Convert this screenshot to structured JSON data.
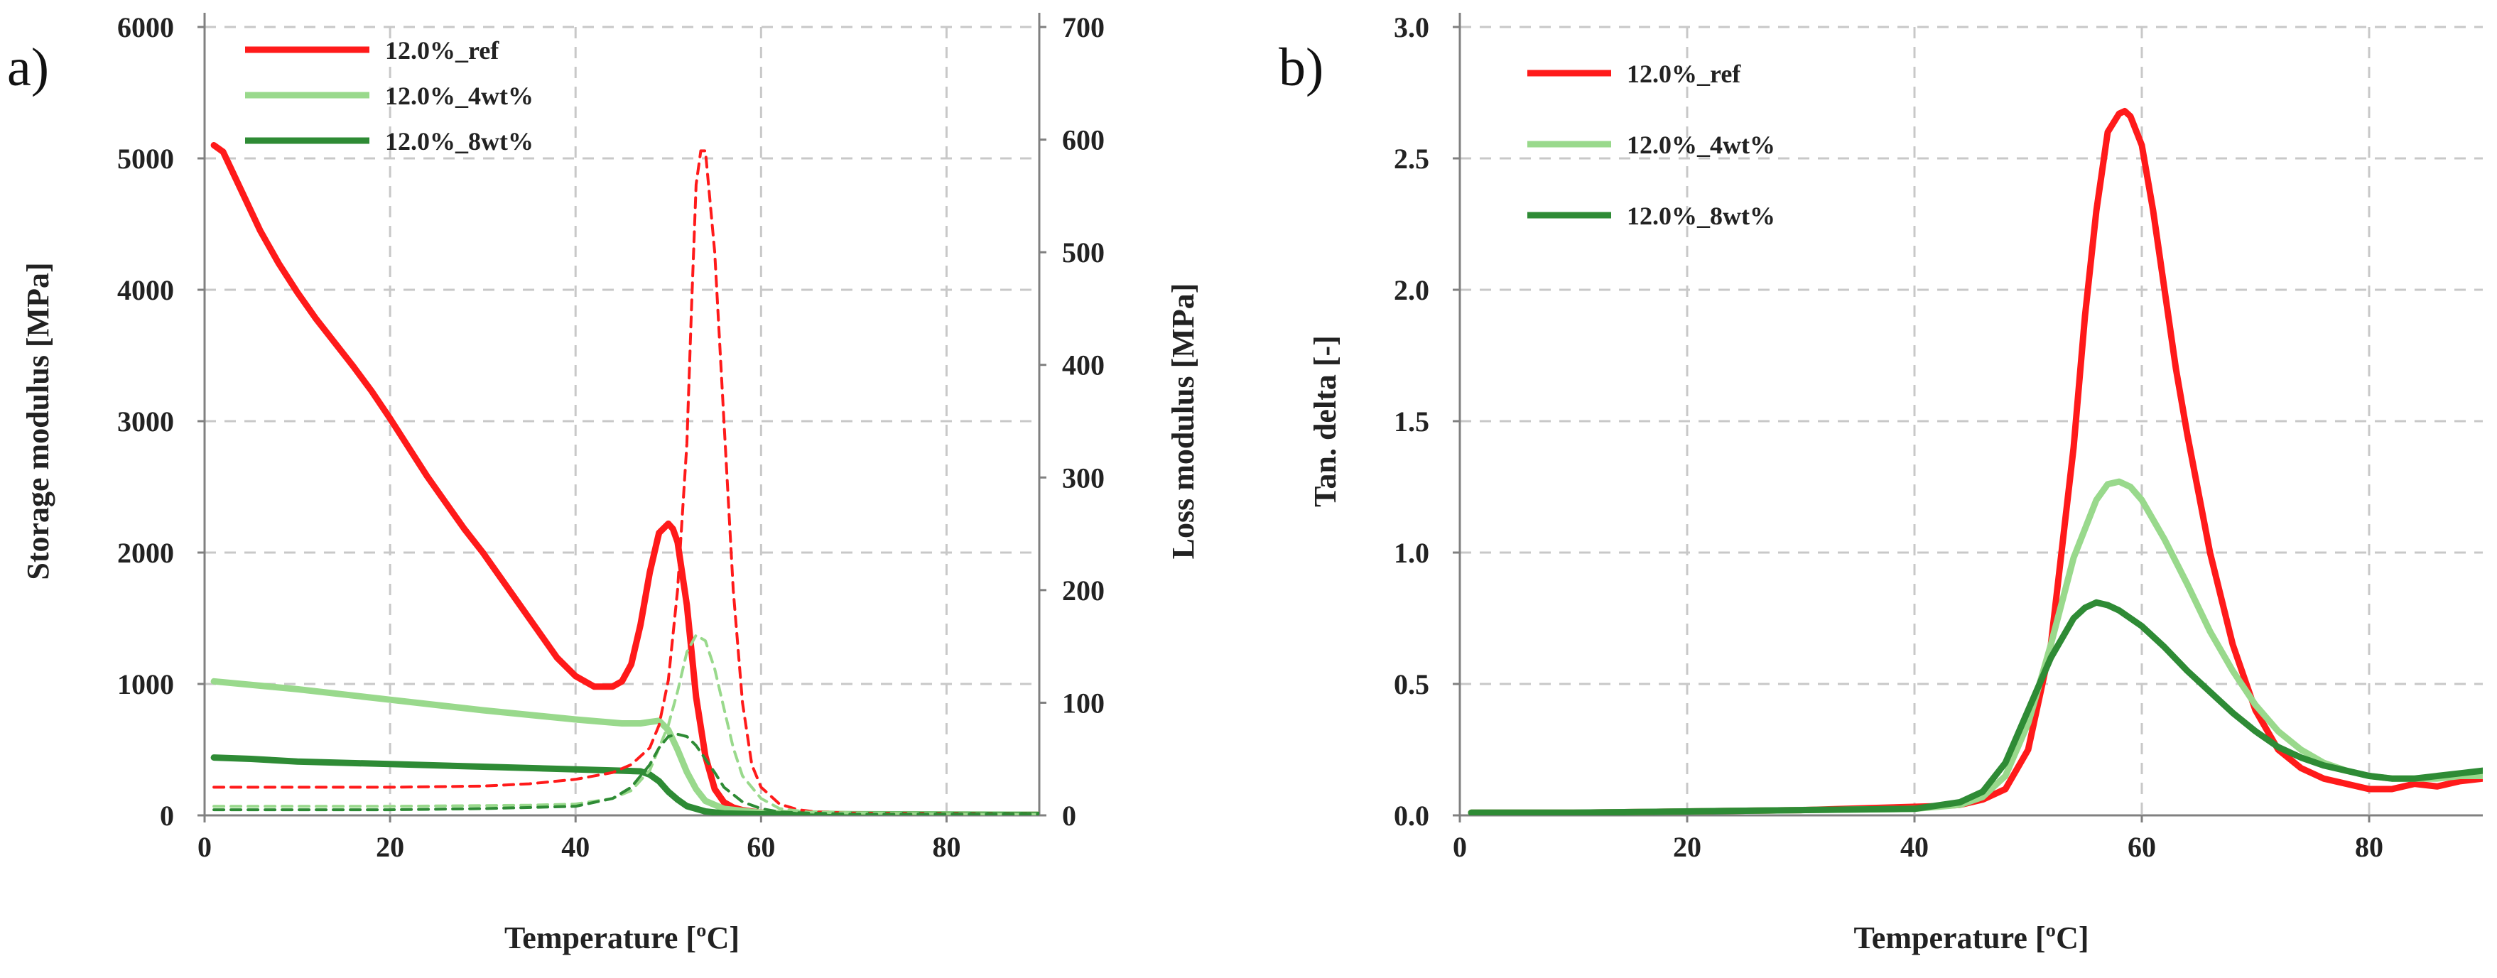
{
  "panels": [
    {
      "id": "a",
      "label": "a)"
    },
    {
      "id": "b",
      "label": "b)"
    }
  ],
  "colors": {
    "ref": "#ff1a1a",
    "wt4": "#99d98c",
    "wt8": "#2e8b35"
  },
  "chart_data": [
    {
      "panel": "a",
      "type": "line",
      "title": "",
      "xlabel": "Temperature  [ºC]",
      "ylabel": "Storage modulus  [MPa]",
      "y2label": "Loss modulus  [MPa]",
      "xlim": [
        0,
        90
      ],
      "ylim": [
        0,
        6000
      ],
      "y2lim": [
        0,
        700
      ],
      "xticks": [
        "0",
        "20",
        "40",
        "60",
        "80"
      ],
      "yticks": [
        "0",
        "1000",
        "2000",
        "3000",
        "4000",
        "5000",
        "6000"
      ],
      "y2ticks": [
        "0",
        "100",
        "200",
        "300",
        "400",
        "500",
        "600",
        "700"
      ],
      "legend": [
        "12.0%_ref",
        "12.0%_4wt%",
        "12.0%_8wt%"
      ],
      "series": [
        {
          "name": "12.0%_ref",
          "color": "ref",
          "axis": "left",
          "dash": false,
          "x": [
            1,
            2,
            4,
            6,
            8,
            10,
            12,
            14,
            16,
            18,
            20,
            22,
            24,
            26,
            28,
            30,
            32,
            34,
            36,
            38,
            40,
            42,
            44,
            45,
            46,
            47,
            48,
            49,
            50,
            50.5,
            51,
            52,
            53,
            54,
            55,
            56,
            57,
            58,
            60,
            65,
            70,
            80,
            90
          ],
          "y": [
            5100,
            5050,
            4750,
            4450,
            4200,
            3980,
            3780,
            3600,
            3420,
            3230,
            3020,
            2800,
            2580,
            2380,
            2180,
            2000,
            1800,
            1600,
            1400,
            1200,
            1060,
            980,
            980,
            1020,
            1150,
            1450,
            1850,
            2150,
            2220,
            2180,
            2080,
            1600,
            900,
            450,
            200,
            100,
            60,
            40,
            20,
            10,
            8,
            5,
            5
          ]
        },
        {
          "name": "12.0%_4wt%",
          "color": "wt4",
          "axis": "left",
          "dash": false,
          "x": [
            1,
            10,
            20,
            30,
            40,
            45,
            47,
            48,
            49,
            50,
            51,
            52,
            53,
            54,
            56,
            60,
            70,
            90
          ],
          "y": [
            1020,
            960,
            880,
            800,
            730,
            700,
            700,
            710,
            720,
            650,
            500,
            330,
            200,
            110,
            50,
            20,
            10,
            5
          ]
        },
        {
          "name": "12.0%_8wt%",
          "color": "wt8",
          "axis": "left",
          "dash": false,
          "x": [
            1,
            5,
            10,
            20,
            30,
            40,
            45,
            47,
            48,
            49,
            50,
            51,
            52,
            54,
            56,
            60,
            70,
            90
          ],
          "y": [
            440,
            430,
            410,
            390,
            370,
            350,
            340,
            335,
            310,
            260,
            180,
            120,
            70,
            30,
            15,
            8,
            5,
            3
          ]
        },
        {
          "name": "12.0%_ref loss",
          "color": "ref",
          "axis": "right",
          "dash": true,
          "x": [
            1,
            10,
            20,
            30,
            35,
            40,
            44,
            46,
            48,
            49,
            50,
            51,
            52,
            52.5,
            53,
            53.5,
            54,
            55,
            56,
            57,
            58,
            59,
            60,
            62,
            64,
            66,
            70,
            90
          ],
          "y": [
            25,
            25,
            25,
            26,
            28,
            32,
            38,
            45,
            60,
            80,
            120,
            200,
            330,
            450,
            560,
            590,
            590,
            500,
            350,
            200,
            100,
            45,
            25,
            10,
            5,
            3,
            2,
            1
          ]
        },
        {
          "name": "12.0%_4wt% loss",
          "color": "wt4",
          "axis": "right",
          "dash": true,
          "x": [
            1,
            20,
            35,
            40,
            44,
            46,
            48,
            50,
            51,
            52,
            53,
            54,
            55,
            56,
            57,
            58,
            60,
            62,
            65,
            70,
            90
          ],
          "y": [
            8,
            8,
            9,
            10,
            15,
            22,
            40,
            80,
            110,
            145,
            160,
            155,
            130,
            95,
            60,
            35,
            15,
            6,
            3,
            2,
            1
          ]
        },
        {
          "name": "12.0%_8wt% loss",
          "color": "wt8",
          "axis": "right",
          "dash": true,
          "x": [
            1,
            20,
            30,
            40,
            44,
            46,
            48,
            49,
            50,
            51,
            52,
            53,
            54,
            55,
            56,
            58,
            60,
            62,
            65,
            70,
            90
          ],
          "y": [
            5,
            5,
            6,
            8,
            15,
            25,
            45,
            60,
            70,
            72,
            70,
            62,
            50,
            38,
            25,
            12,
            6,
            3,
            2,
            1,
            1
          ]
        }
      ]
    },
    {
      "panel": "b",
      "type": "line",
      "title": "",
      "xlabel": "Temperature  [ºC]",
      "ylabel": "Tan. delta  [-]",
      "xlim": [
        0,
        90
      ],
      "ylim": [
        0,
        3.0
      ],
      "xticks": [
        "0",
        "20",
        "40",
        "60",
        "80"
      ],
      "yticks": [
        "0.0",
        "0.5",
        "1.0",
        "1.5",
        "2.0",
        "2.5",
        "3.0"
      ],
      "legend": [
        "12.0%_ref",
        "12.0%_4wt%",
        "12.0%_8wt%"
      ],
      "series": [
        {
          "name": "12.0%_ref",
          "color": "ref",
          "x": [
            1,
            10,
            20,
            30,
            38,
            42,
            44,
            46,
            48,
            50,
            52,
            54,
            55,
            56,
            57,
            58,
            58.5,
            59,
            60,
            61,
            62,
            63,
            64,
            66,
            68,
            70,
            72,
            74,
            76,
            78,
            80,
            82,
            84,
            86,
            88,
            90
          ],
          "y": [
            0.01,
            0.01,
            0.015,
            0.02,
            0.03,
            0.035,
            0.04,
            0.06,
            0.1,
            0.25,
            0.65,
            1.4,
            1.9,
            2.3,
            2.6,
            2.67,
            2.68,
            2.66,
            2.55,
            2.3,
            2.0,
            1.7,
            1.45,
            1.0,
            0.65,
            0.4,
            0.25,
            0.18,
            0.14,
            0.12,
            0.1,
            0.1,
            0.12,
            0.11,
            0.13,
            0.14
          ]
        },
        {
          "name": "12.0%_4wt%",
          "color": "wt4",
          "x": [
            1,
            10,
            20,
            30,
            40,
            44,
            46,
            48,
            50,
            52,
            54,
            56,
            57,
            58,
            59,
            60,
            62,
            64,
            66,
            68,
            70,
            72,
            74,
            76,
            78,
            80,
            82,
            84,
            86,
            88,
            90
          ],
          "y": [
            0.01,
            0.01,
            0.015,
            0.02,
            0.025,
            0.04,
            0.07,
            0.15,
            0.35,
            0.65,
            0.98,
            1.2,
            1.26,
            1.27,
            1.25,
            1.2,
            1.05,
            0.88,
            0.7,
            0.55,
            0.42,
            0.32,
            0.25,
            0.2,
            0.17,
            0.15,
            0.14,
            0.14,
            0.14,
            0.15,
            0.15
          ]
        },
        {
          "name": "12.0%_8wt%",
          "color": "wt8",
          "x": [
            1,
            10,
            20,
            30,
            40,
            44,
            46,
            48,
            50,
            52,
            54,
            55,
            56,
            57,
            58,
            60,
            62,
            64,
            66,
            68,
            70,
            72,
            74,
            76,
            78,
            80,
            82,
            84,
            86,
            88,
            90
          ],
          "y": [
            0.01,
            0.01,
            0.015,
            0.02,
            0.025,
            0.05,
            0.09,
            0.2,
            0.4,
            0.6,
            0.75,
            0.79,
            0.81,
            0.8,
            0.78,
            0.72,
            0.64,
            0.55,
            0.47,
            0.39,
            0.32,
            0.26,
            0.22,
            0.19,
            0.17,
            0.15,
            0.14,
            0.14,
            0.15,
            0.16,
            0.17
          ]
        }
      ]
    }
  ]
}
